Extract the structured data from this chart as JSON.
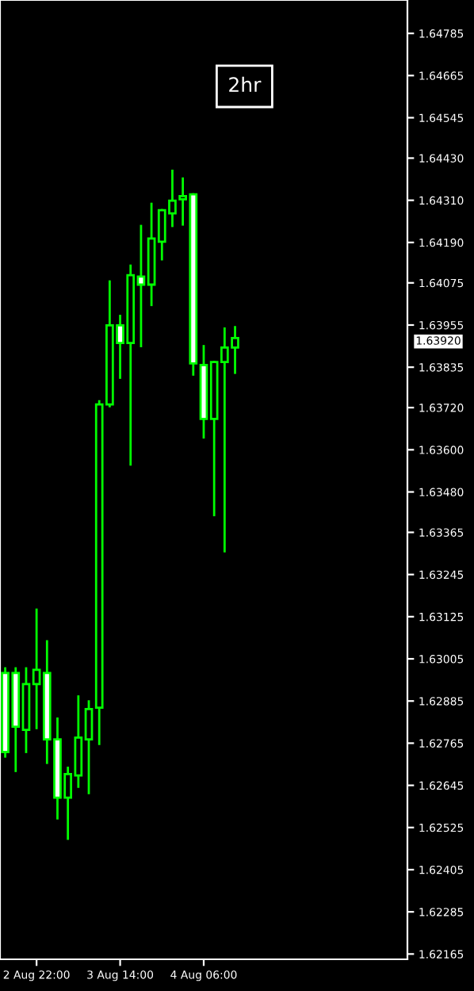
{
  "chart_data": {
    "type": "candlestick",
    "color": "#00ff00",
    "categories": [
      null,
      null,
      null,
      "2 Aug 22:00",
      null,
      null,
      null,
      null,
      null,
      null,
      null,
      "3 Aug 14:00",
      null,
      null,
      null,
      null,
      null,
      null,
      null,
      "4 Aug 06:00",
      null,
      null,
      null,
      null,
      null,
      null,
      null,
      null,
      null,
      null,
      null,
      null,
      null,
      null,
      null,
      null,
      null,
      null,
      null
    ],
    "ohlc": [
      [
        1.62965,
        1.62978,
        1.62727,
        1.6274
      ],
      [
        1.62965,
        1.62978,
        1.62686,
        1.62812
      ],
      [
        1.62803,
        1.62978,
        1.6274,
        1.62933
      ],
      [
        1.62933,
        1.63145,
        1.62808,
        1.62974
      ],
      [
        1.62965,
        1.63055,
        1.62709,
        1.62776
      ],
      [
        1.62776,
        1.62835,
        1.62551,
        1.6261
      ],
      [
        1.6261,
        1.62695,
        1.62493,
        1.62677
      ],
      [
        1.62673,
        1.62898,
        1.62641,
        1.62781
      ],
      [
        1.62776,
        1.62884,
        1.62623,
        1.62862
      ],
      [
        1.62866,
        1.63738,
        1.62763,
        1.63729
      ],
      [
        1.63729,
        1.64079,
        1.63724,
        1.63954
      ],
      [
        1.63954,
        1.63981,
        1.63805,
        1.63904
      ],
      [
        1.63904,
        1.64124,
        1.63558,
        1.64097
      ],
      [
        1.64093,
        1.64237,
        1.63895,
        1.6407
      ],
      [
        1.6407,
        1.643,
        1.64012,
        1.64201
      ],
      [
        1.64192,
        1.64282,
        1.64142,
        1.64282
      ],
      [
        1.64273,
        1.64394,
        1.64237,
        1.64309
      ],
      [
        1.64313,
        1.64372,
        1.64241,
        1.64322
      ],
      [
        1.64327,
        1.64327,
        1.63814,
        1.63846
      ],
      [
        1.63841,
        1.63895,
        1.63635,
        1.63688
      ],
      [
        1.63688,
        1.6385,
        1.63414,
        1.6385
      ],
      [
        1.6385,
        1.63945,
        1.63311,
        1.63891
      ],
      [
        1.63891,
        1.63949,
        1.63819,
        1.63918
      ],
      null,
      null,
      null,
      null,
      null,
      null,
      null,
      null,
      null,
      null,
      null,
      null,
      null,
      null,
      null,
      null
    ],
    "ylim": [
      1.6215,
      1.6488
    ],
    "yticks": [
      1.64785,
      1.64665,
      1.64545,
      {
        "value": 1.6443,
        "label": "1.64430"
      },
      {
        "value": 1.6431,
        "label": "1.64310"
      },
      {
        "value": 1.6419,
        "label": "1.64190"
      },
      1.64075,
      1.63955,
      1.63835,
      {
        "value": 1.6372,
        "label": "1.63720"
      },
      {
        "value": 1.636,
        "label": "1.63600"
      },
      {
        "value": 1.6348,
        "label": "1.63480"
      },
      1.63365,
      1.63245,
      1.63125,
      1.63005,
      1.62885,
      1.62765,
      1.62645,
      1.62525,
      1.62405,
      1.62285,
      1.62165
    ],
    "annotations": [
      "2hr",
      "1.63920"
    ],
    "grid": false,
    "legend": false
  }
}
